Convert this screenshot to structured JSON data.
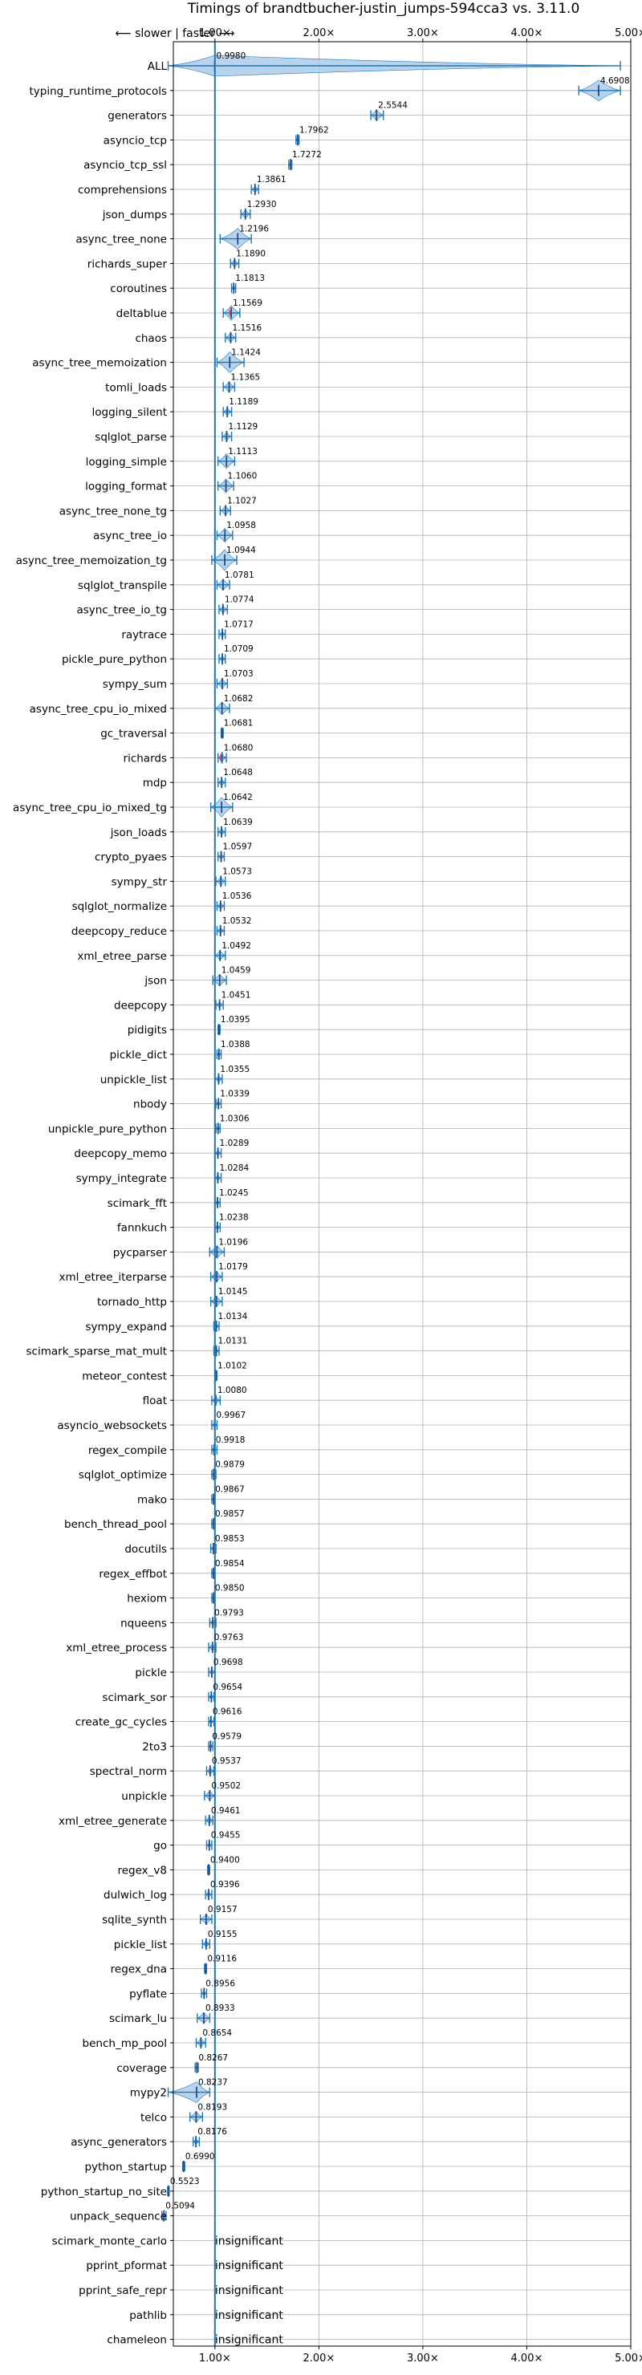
{
  "chart_data": {
    "type": "violin",
    "title": "Timings of brandtbucher-justin_jumps-594cca3 vs. 3.11.0",
    "direction_hint": "⟵ slower  |  faster ⟶",
    "x_ticks": [
      "1.00×",
      "2.00×",
      "3.00×",
      "4.00×",
      "5.00×"
    ],
    "x_tick_values": [
      1,
      2,
      3,
      4,
      5
    ],
    "xlim": [
      0.6,
      5.0
    ],
    "grid": true,
    "colors": {
      "violin": "#1f77b4",
      "violin_fill": "#a9c8e8",
      "marker": "#1f4e8c",
      "outlier": "#e0455a",
      "grid": "#b0b0b0"
    },
    "benchmarks": [
      {
        "name": "ALL",
        "value": 0.998,
        "label": "0.9980",
        "lo": 0.55,
        "hi": 4.9
      },
      {
        "name": "typing_runtime_protocols",
        "value": 4.6908,
        "label": "4.6908",
        "lo": 4.5,
        "hi": 4.9
      },
      {
        "name": "generators",
        "value": 2.5544,
        "label": "2.5544",
        "lo": 2.5,
        "hi": 2.62
      },
      {
        "name": "asyncio_tcp",
        "value": 1.7962,
        "label": "1.7962",
        "lo": 1.78,
        "hi": 1.81
      },
      {
        "name": "asyncio_tcp_ssl",
        "value": 1.7272,
        "label": "1.7272",
        "lo": 1.71,
        "hi": 1.74
      },
      {
        "name": "comprehensions",
        "value": 1.3861,
        "label": "1.3861",
        "lo": 1.35,
        "hi": 1.42
      },
      {
        "name": "json_dumps",
        "value": 1.293,
        "label": "1.2930",
        "lo": 1.25,
        "hi": 1.34
      },
      {
        "name": "async_tree_none",
        "value": 1.2196,
        "label": "1.2196",
        "lo": 1.05,
        "hi": 1.35
      },
      {
        "name": "richards_super",
        "value": 1.189,
        "label": "1.1890",
        "lo": 1.15,
        "hi": 1.23
      },
      {
        "name": "coroutines",
        "value": 1.1813,
        "label": "1.1813",
        "lo": 1.16,
        "hi": 1.2
      },
      {
        "name": "deltablue",
        "value": 1.1569,
        "label": "1.1569",
        "lo": 1.08,
        "hi": 1.24,
        "outlier": true
      },
      {
        "name": "chaos",
        "value": 1.1516,
        "label": "1.1516",
        "lo": 1.1,
        "hi": 1.2
      },
      {
        "name": "async_tree_memoization",
        "value": 1.1424,
        "label": "1.1424",
        "lo": 1.02,
        "hi": 1.28
      },
      {
        "name": "tomli_loads",
        "value": 1.1365,
        "label": "1.1365",
        "lo": 1.08,
        "hi": 1.19
      },
      {
        "name": "logging_silent",
        "value": 1.1189,
        "label": "1.1189",
        "lo": 1.08,
        "hi": 1.16
      },
      {
        "name": "sqlglot_parse",
        "value": 1.1129,
        "label": "1.1129",
        "lo": 1.07,
        "hi": 1.16
      },
      {
        "name": "logging_simple",
        "value": 1.1113,
        "label": "1.1113",
        "lo": 1.03,
        "hi": 1.19
      },
      {
        "name": "logging_format",
        "value": 1.106,
        "label": "1.1060",
        "lo": 1.03,
        "hi": 1.18
      },
      {
        "name": "async_tree_none_tg",
        "value": 1.1027,
        "label": "1.1027",
        "lo": 1.05,
        "hi": 1.15
      },
      {
        "name": "async_tree_io",
        "value": 1.0958,
        "label": "1.0958",
        "lo": 1.02,
        "hi": 1.17
      },
      {
        "name": "async_tree_memoization_tg",
        "value": 1.0944,
        "label": "1.0944",
        "lo": 0.97,
        "hi": 1.21
      },
      {
        "name": "sqlglot_transpile",
        "value": 1.0781,
        "label": "1.0781",
        "lo": 1.02,
        "hi": 1.14
      },
      {
        "name": "async_tree_io_tg",
        "value": 1.0774,
        "label": "1.0774",
        "lo": 1.04,
        "hi": 1.12
      },
      {
        "name": "raytrace",
        "value": 1.0717,
        "label": "1.0717",
        "lo": 1.04,
        "hi": 1.1
      },
      {
        "name": "pickle_pure_python",
        "value": 1.0709,
        "label": "1.0709",
        "lo": 1.04,
        "hi": 1.1
      },
      {
        "name": "sympy_sum",
        "value": 1.0703,
        "label": "1.0703",
        "lo": 1.02,
        "hi": 1.12
      },
      {
        "name": "async_tree_cpu_io_mixed",
        "value": 1.0682,
        "label": "1.0682",
        "lo": 1.0,
        "hi": 1.14
      },
      {
        "name": "gc_traversal",
        "value": 1.0681,
        "label": "1.0681",
        "lo": 1.06,
        "hi": 1.08
      },
      {
        "name": "richards",
        "value": 1.068,
        "label": "1.0680",
        "lo": 1.03,
        "hi": 1.11,
        "outlier": true
      },
      {
        "name": "mdp",
        "value": 1.0648,
        "label": "1.0648",
        "lo": 1.03,
        "hi": 1.1
      },
      {
        "name": "async_tree_cpu_io_mixed_tg",
        "value": 1.0642,
        "label": "1.0642",
        "lo": 0.96,
        "hi": 1.17
      },
      {
        "name": "json_loads",
        "value": 1.0639,
        "label": "1.0639",
        "lo": 1.03,
        "hi": 1.1
      },
      {
        "name": "crypto_pyaes",
        "value": 1.0597,
        "label": "1.0597",
        "lo": 1.03,
        "hi": 1.09
      },
      {
        "name": "sympy_str",
        "value": 1.0573,
        "label": "1.0573",
        "lo": 1.01,
        "hi": 1.1
      },
      {
        "name": "sqlglot_normalize",
        "value": 1.0536,
        "label": "1.0536",
        "lo": 1.02,
        "hi": 1.09
      },
      {
        "name": "deepcopy_reduce",
        "value": 1.0532,
        "label": "1.0532",
        "lo": 1.02,
        "hi": 1.09
      },
      {
        "name": "xml_etree_parse",
        "value": 1.0492,
        "label": "1.0492",
        "lo": 1.0,
        "hi": 1.1
      },
      {
        "name": "json",
        "value": 1.0459,
        "label": "1.0459",
        "lo": 0.98,
        "hi": 1.11
      },
      {
        "name": "deepcopy",
        "value": 1.0451,
        "label": "1.0451",
        "lo": 1.01,
        "hi": 1.08
      },
      {
        "name": "pidigits",
        "value": 1.0395,
        "label": "1.0395",
        "lo": 1.03,
        "hi": 1.05
      },
      {
        "name": "pickle_dict",
        "value": 1.0388,
        "label": "1.0388",
        "lo": 1.02,
        "hi": 1.06
      },
      {
        "name": "unpickle_list",
        "value": 1.0355,
        "label": "1.0355",
        "lo": 1.0,
        "hi": 1.07
      },
      {
        "name": "nbody",
        "value": 1.0339,
        "label": "1.0339",
        "lo": 1.01,
        "hi": 1.06
      },
      {
        "name": "unpickle_pure_python",
        "value": 1.0306,
        "label": "1.0306",
        "lo": 1.01,
        "hi": 1.05
      },
      {
        "name": "deepcopy_memo",
        "value": 1.0289,
        "label": "1.0289",
        "lo": 1.0,
        "hi": 1.06
      },
      {
        "name": "sympy_integrate",
        "value": 1.0284,
        "label": "1.0284",
        "lo": 1.0,
        "hi": 1.06
      },
      {
        "name": "scimark_fft",
        "value": 1.0245,
        "label": "1.0245",
        "lo": 1.0,
        "hi": 1.05
      },
      {
        "name": "fannkuch",
        "value": 1.0238,
        "label": "1.0238",
        "lo": 1.0,
        "hi": 1.05
      },
      {
        "name": "pycparser",
        "value": 1.0196,
        "label": "1.0196",
        "lo": 0.95,
        "hi": 1.09
      },
      {
        "name": "xml_etree_iterparse",
        "value": 1.0179,
        "label": "1.0179",
        "lo": 0.96,
        "hi": 1.07
      },
      {
        "name": "tornado_http",
        "value": 1.0145,
        "label": "1.0145",
        "lo": 0.96,
        "hi": 1.07
      },
      {
        "name": "sympy_expand",
        "value": 1.0134,
        "label": "1.0134",
        "lo": 0.99,
        "hi": 1.04
      },
      {
        "name": "scimark_sparse_mat_mult",
        "value": 1.0131,
        "label": "1.0131",
        "lo": 0.99,
        "hi": 1.04
      },
      {
        "name": "meteor_contest",
        "value": 1.0102,
        "label": "1.0102",
        "lo": 1.0,
        "hi": 1.02
      },
      {
        "name": "float",
        "value": 1.008,
        "label": "1.0080",
        "lo": 0.97,
        "hi": 1.05
      },
      {
        "name": "asyncio_websockets",
        "value": 0.9967,
        "label": "0.9967",
        "lo": 0.97,
        "hi": 1.02
      },
      {
        "name": "regex_compile",
        "value": 0.9918,
        "label": "0.9918",
        "lo": 0.97,
        "hi": 1.02
      },
      {
        "name": "sqlglot_optimize",
        "value": 0.9879,
        "label": "0.9879",
        "lo": 0.97,
        "hi": 1.01
      },
      {
        "name": "mako",
        "value": 0.9867,
        "label": "0.9867",
        "lo": 0.97,
        "hi": 1.0
      },
      {
        "name": "bench_thread_pool",
        "value": 0.9857,
        "label": "0.9857",
        "lo": 0.97,
        "hi": 1.0
      },
      {
        "name": "docutils",
        "value": 0.9853,
        "label": "0.9853",
        "lo": 0.96,
        "hi": 1.01
      },
      {
        "name": "regex_effbot",
        "value": 0.9854,
        "label": "0.9854",
        "lo": 0.97,
        "hi": 1.0
      },
      {
        "name": "hexiom",
        "value": 0.985,
        "label": "0.9850",
        "lo": 0.97,
        "hi": 1.0
      },
      {
        "name": "nqueens",
        "value": 0.9793,
        "label": "0.9793",
        "lo": 0.95,
        "hi": 1.01
      },
      {
        "name": "xml_etree_process",
        "value": 0.9763,
        "label": "0.9763",
        "lo": 0.94,
        "hi": 1.01
      },
      {
        "name": "pickle",
        "value": 0.9698,
        "label": "0.9698",
        "lo": 0.94,
        "hi": 1.0
      },
      {
        "name": "scimark_sor",
        "value": 0.9654,
        "label": "0.9654",
        "lo": 0.94,
        "hi": 0.99
      },
      {
        "name": "create_gc_cycles",
        "value": 0.9616,
        "label": "0.9616",
        "lo": 0.94,
        "hi": 0.99
      },
      {
        "name": "2to3",
        "value": 0.9579,
        "label": "0.9579",
        "lo": 0.94,
        "hi": 0.98
      },
      {
        "name": "spectral_norm",
        "value": 0.9537,
        "label": "0.9537",
        "lo": 0.92,
        "hi": 0.99
      },
      {
        "name": "unpickle",
        "value": 0.9502,
        "label": "0.9502",
        "lo": 0.9,
        "hi": 1.0
      },
      {
        "name": "xml_etree_generate",
        "value": 0.9461,
        "label": "0.9461",
        "lo": 0.91,
        "hi": 0.98
      },
      {
        "name": "go",
        "value": 0.9455,
        "label": "0.9455",
        "lo": 0.92,
        "hi": 0.97
      },
      {
        "name": "regex_v8",
        "value": 0.94,
        "label": "0.9400",
        "lo": 0.93,
        "hi": 0.95
      },
      {
        "name": "dulwich_log",
        "value": 0.9396,
        "label": "0.9396",
        "lo": 0.91,
        "hi": 0.97
      },
      {
        "name": "sqlite_synth",
        "value": 0.9157,
        "label": "0.9157",
        "lo": 0.86,
        "hi": 0.97
      },
      {
        "name": "pickle_list",
        "value": 0.9155,
        "label": "0.9155",
        "lo": 0.88,
        "hi": 0.95
      },
      {
        "name": "regex_dna",
        "value": 0.9116,
        "label": "0.9116",
        "lo": 0.9,
        "hi": 0.92
      },
      {
        "name": "pyflate",
        "value": 0.8956,
        "label": "0.8956",
        "lo": 0.87,
        "hi": 0.92
      },
      {
        "name": "scimark_lu",
        "value": 0.8933,
        "label": "0.8933",
        "lo": 0.83,
        "hi": 0.95
      },
      {
        "name": "bench_mp_pool",
        "value": 0.8654,
        "label": "0.8654",
        "lo": 0.82,
        "hi": 0.91
      },
      {
        "name": "coverage",
        "value": 0.8267,
        "label": "0.8267",
        "lo": 0.81,
        "hi": 0.84
      },
      {
        "name": "mypy2",
        "value": 0.8237,
        "label": "0.8237",
        "lo": 0.55,
        "hi": 0.95
      },
      {
        "name": "telco",
        "value": 0.8193,
        "label": "0.8193",
        "lo": 0.76,
        "hi": 0.88
      },
      {
        "name": "async_generators",
        "value": 0.8176,
        "label": "0.8176",
        "lo": 0.79,
        "hi": 0.85
      },
      {
        "name": "python_startup",
        "value": 0.699,
        "label": "0.6990",
        "lo": 0.69,
        "hi": 0.71
      },
      {
        "name": "python_startup_no_site",
        "value": 0.5523,
        "label": "0.5523",
        "lo": 0.545,
        "hi": 0.56
      },
      {
        "name": "unpack_sequence",
        "value": 0.5094,
        "label": "0.5094",
        "lo": 0.49,
        "hi": 0.53
      },
      {
        "name": "scimark_monte_carlo",
        "value": null,
        "label": "insignificant"
      },
      {
        "name": "pprint_pformat",
        "value": null,
        "label": "insignificant"
      },
      {
        "name": "pprint_safe_repr",
        "value": null,
        "label": "insignificant"
      },
      {
        "name": "pathlib",
        "value": null,
        "label": "insignificant"
      },
      {
        "name": "chameleon",
        "value": null,
        "label": "insignificant"
      }
    ]
  }
}
